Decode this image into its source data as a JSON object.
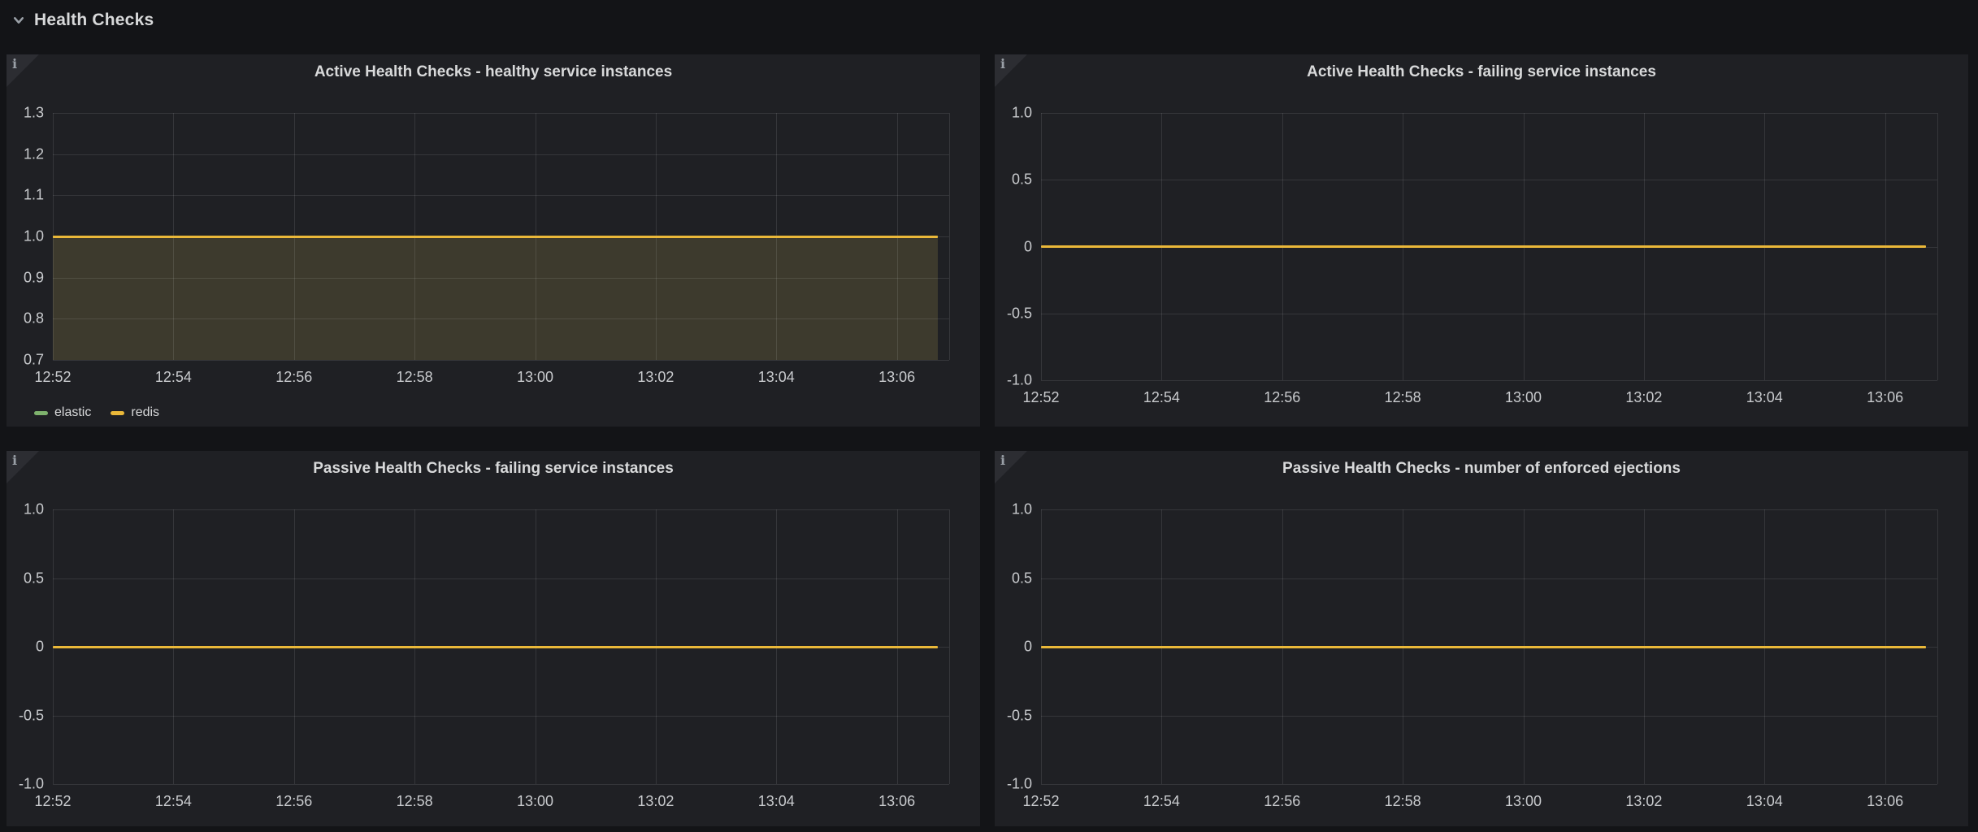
{
  "row_header": {
    "label": "Health Checks"
  },
  "icons": {
    "info_glyph": "i",
    "collapse": "chevron-down"
  },
  "colors": {
    "page_background": "#131417",
    "panel_background": "#1f2024",
    "grid_line": "rgba(255,255,255,0.10)",
    "axis_text": "#c9cbce",
    "title_text": "#d8d9da",
    "series_yellow": "#EAB839",
    "series_green": "#7EB26D",
    "area_fill": "rgba(216,196,94,0.16)"
  },
  "chart_data": [
    {
      "type": "line",
      "title": "Active Health Checks - healthy service instances",
      "x_ticks": [
        "12:52",
        "12:54",
        "12:56",
        "12:58",
        "13:00",
        "13:02",
        "13:04",
        "13:06"
      ],
      "y_ticks": [
        "1.3",
        "1.2",
        "1.1",
        "1.0",
        "0.9",
        "0.8",
        "0.7"
      ],
      "ylim": [
        0.7,
        1.3
      ],
      "grid": true,
      "legend_position": "bottom-left",
      "fill_render_color": "rgba(216,196,94,0.16)",
      "series": [
        {
          "name": "elastic",
          "color": "#7EB26D",
          "constant_value": 1.0,
          "fill": true
        },
        {
          "name": "redis",
          "color": "#EAB839",
          "constant_value": 1.0,
          "fill": true
        }
      ]
    },
    {
      "type": "line",
      "title": "Active Health Checks - failing service instances",
      "x_ticks": [
        "12:52",
        "12:54",
        "12:56",
        "12:58",
        "13:00",
        "13:02",
        "13:04",
        "13:06"
      ],
      "y_ticks": [
        "1.0",
        "0.5",
        "0",
        "-0.5",
        "-1.0"
      ],
      "ylim": [
        -1.0,
        1.0
      ],
      "grid": true,
      "legend_position": "none",
      "series": [
        {
          "color": "#EAB839",
          "constant_value": 0,
          "fill": false
        }
      ]
    },
    {
      "type": "line",
      "title": "Passive Health Checks - failing service instances",
      "x_ticks": [
        "12:52",
        "12:54",
        "12:56",
        "12:58",
        "13:00",
        "13:02",
        "13:04",
        "13:06"
      ],
      "y_ticks": [
        "1.0",
        "0.5",
        "0",
        "-0.5",
        "-1.0"
      ],
      "ylim": [
        -1.0,
        1.0
      ],
      "grid": true,
      "legend_position": "none",
      "series": [
        {
          "color": "#EAB839",
          "constant_value": 0,
          "fill": false
        }
      ]
    },
    {
      "type": "line",
      "title": "Passive Health Checks - number of enforced ejections",
      "x_ticks": [
        "12:52",
        "12:54",
        "12:56",
        "12:58",
        "13:00",
        "13:02",
        "13:04",
        "13:06"
      ],
      "y_ticks": [
        "1.0",
        "0.5",
        "0",
        "-0.5",
        "-1.0"
      ],
      "ylim": [
        -1.0,
        1.0
      ],
      "grid": true,
      "legend_position": "none",
      "series": [
        {
          "color": "#EAB839",
          "constant_value": 0,
          "fill": false
        }
      ]
    }
  ]
}
